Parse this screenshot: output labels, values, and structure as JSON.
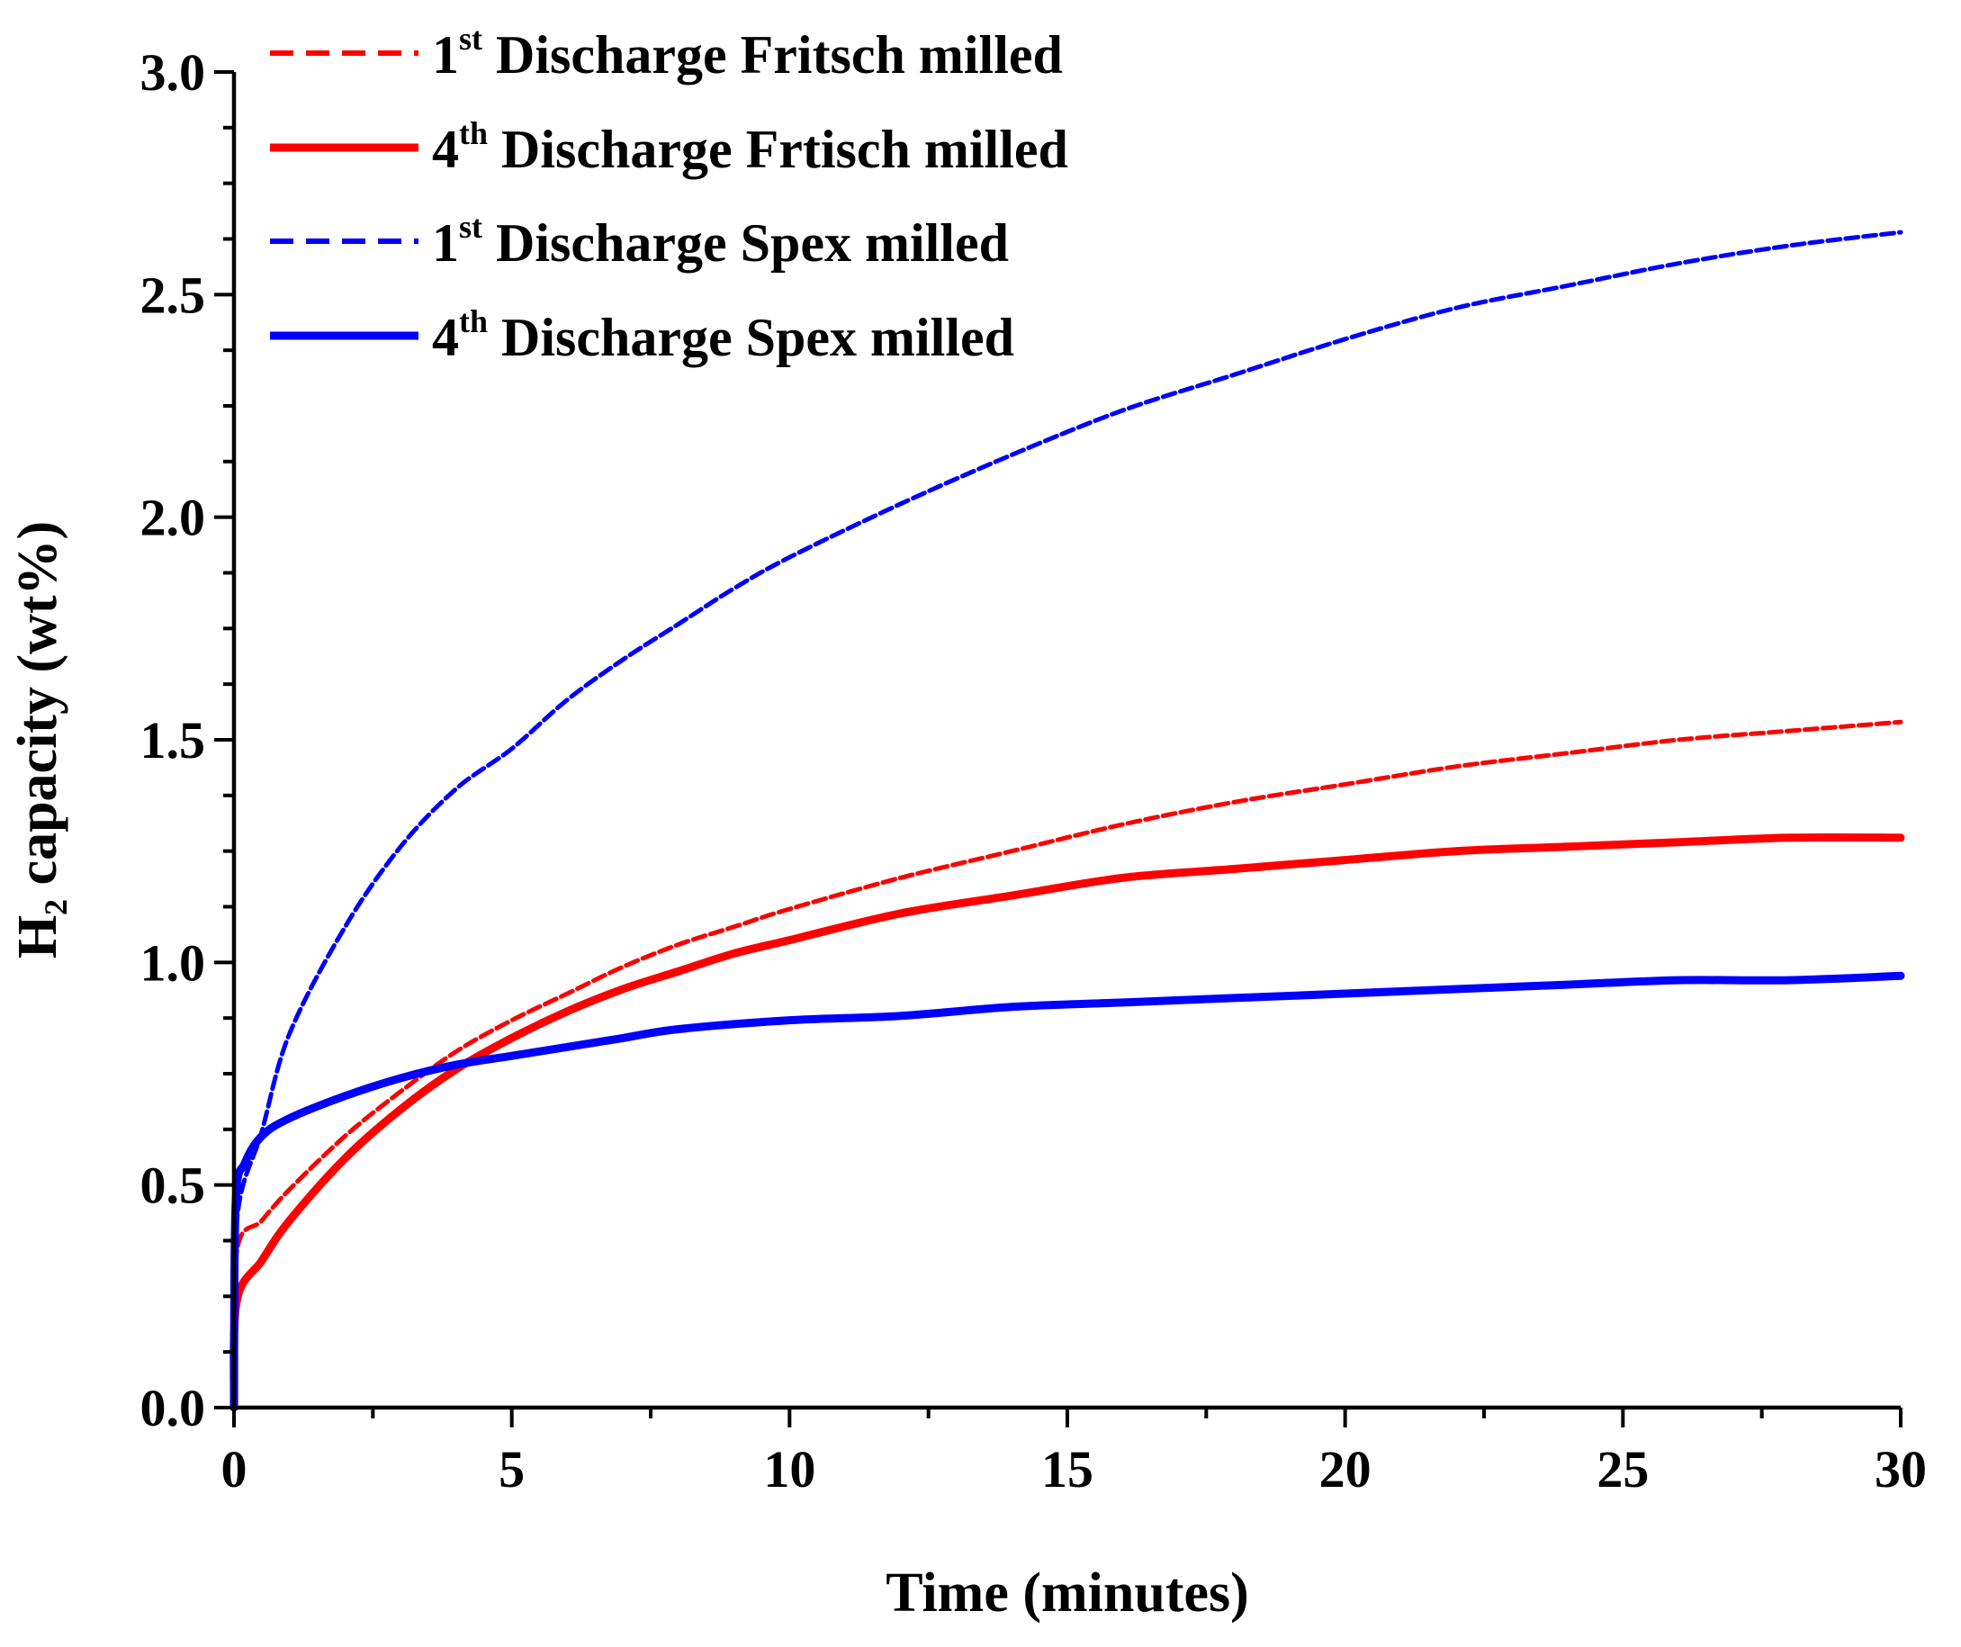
{
  "chart_data": {
    "type": "line",
    "title": "",
    "xlabel": "Time (minutes)",
    "ylabel_main": "H",
    "ylabel_sub": "2",
    "ylabel_rest": " capacity (wt%)",
    "xlim": [
      0,
      30
    ],
    "ylim": [
      0,
      3.0
    ],
    "xticks": [
      0,
      5,
      10,
      15,
      20,
      25,
      30
    ],
    "xtick_labels": [
      "0",
      "5",
      "10",
      "15",
      "20",
      "25",
      "30"
    ],
    "yticks": [
      0,
      0.5,
      1.0,
      1.5,
      2.0,
      2.5,
      3.0
    ],
    "ytick_labels": [
      "0.0",
      "0.5",
      "1.0",
      "1.5",
      "2.0",
      "2.5",
      "3.0"
    ],
    "grid": false,
    "legend_position": "top-left",
    "series": [
      {
        "name": "1st Discharge Fritsch milled",
        "legend_prefix": "1",
        "legend_sup": "st",
        "legend_suffix": " Discharge Fritsch milled",
        "color": "#ff0000",
        "style": "dashed",
        "x": [
          0,
          0.05,
          0.5,
          1,
          2,
          3,
          4,
          5,
          6,
          7,
          8,
          9,
          10,
          12,
          14,
          16,
          18,
          20,
          22,
          24,
          26,
          28,
          30
        ],
        "y": [
          0,
          0.35,
          0.42,
          0.49,
          0.61,
          0.71,
          0.8,
          0.87,
          0.93,
          0.99,
          1.04,
          1.08,
          1.12,
          1.19,
          1.25,
          1.31,
          1.36,
          1.4,
          1.44,
          1.47,
          1.5,
          1.52,
          1.54
        ]
      },
      {
        "name": "4th Discharge Frtisch milled",
        "legend_prefix": "4",
        "legend_sup": "th",
        "legend_suffix": " Discharge Frtisch milled",
        "color": "#ff0000",
        "style": "solid",
        "x": [
          0,
          0.05,
          0.5,
          1,
          2,
          3,
          4,
          5,
          6,
          7,
          8,
          9,
          10,
          12,
          14,
          16,
          18,
          20,
          22,
          24,
          26,
          28,
          30
        ],
        "y": [
          0,
          0.24,
          0.33,
          0.42,
          0.56,
          0.67,
          0.76,
          0.83,
          0.89,
          0.94,
          0.98,
          1.02,
          1.05,
          1.11,
          1.15,
          1.19,
          1.21,
          1.23,
          1.25,
          1.26,
          1.27,
          1.28,
          1.28
        ]
      },
      {
        "name": "1st Discharge Spex milled",
        "legend_prefix": "1",
        "legend_sup": "st",
        "legend_suffix": " Discharge Spex milled",
        "color": "#0000ff",
        "style": "dashed",
        "x": [
          0,
          0.05,
          0.5,
          1,
          2,
          3,
          4,
          5,
          6,
          7,
          8,
          9,
          10,
          12,
          14,
          16,
          18,
          20,
          22,
          24,
          26,
          28,
          30
        ],
        "y": [
          0,
          0.42,
          0.62,
          0.84,
          1.08,
          1.26,
          1.39,
          1.48,
          1.59,
          1.68,
          1.76,
          1.84,
          1.91,
          2.03,
          2.14,
          2.24,
          2.32,
          2.4,
          2.47,
          2.52,
          2.57,
          2.61,
          2.64
        ]
      },
      {
        "name": "4th Discharge Spex milled",
        "legend_prefix": "4",
        "legend_sup": "th",
        "legend_suffix": " Discharge Spex milled",
        "color": "#0000ff",
        "style": "solid",
        "x": [
          0,
          0.03,
          0.2,
          0.5,
          1,
          2,
          3,
          4,
          5,
          6,
          7,
          8,
          10,
          12,
          14,
          16,
          18,
          20,
          22,
          24,
          26,
          28,
          30
        ],
        "y": [
          0,
          0.46,
          0.55,
          0.61,
          0.65,
          0.7,
          0.74,
          0.77,
          0.79,
          0.81,
          0.83,
          0.85,
          0.87,
          0.88,
          0.9,
          0.91,
          0.92,
          0.93,
          0.94,
          0.95,
          0.96,
          0.96,
          0.97
        ]
      }
    ]
  }
}
